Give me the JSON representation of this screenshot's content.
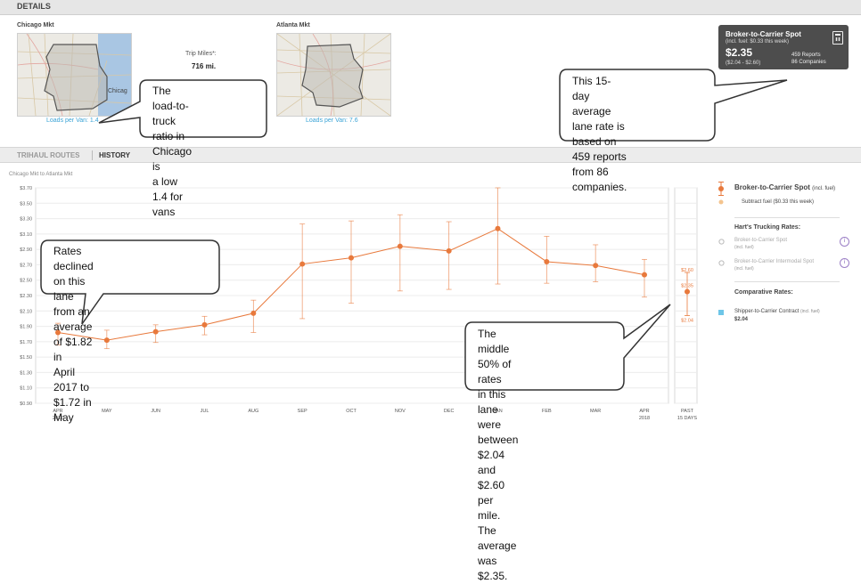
{
  "header": {
    "details_label": "DETAILS"
  },
  "origin": {
    "label": "Chicago Mkt",
    "map_text": "Chicag",
    "loads_per_van": "Loads per Van: 1.4"
  },
  "destination": {
    "label": "Atlanta Mkt",
    "loads_per_van": "Loads per Van: 7.6"
  },
  "trip": {
    "label": "Trip Miles*:",
    "value": "716 mi."
  },
  "spot_card": {
    "title": "Broker-to-Carrier Spot",
    "fuel_note": "(incl. fuel: $0.33 this week)",
    "rate": "$2.35",
    "range": "($2.04 - $2.60)",
    "reports": "459 Reports",
    "companies": "86 Companies",
    "icon": "calculator-icon"
  },
  "tabs": [
    {
      "label": "TRIHAUL ROUTES"
    },
    {
      "label": "HISTORY"
    }
  ],
  "chart_caption": "Chicago Mkt to Atlanta Mkt",
  "chart_data": {
    "type": "line",
    "categories": [
      "APR",
      "MAY",
      "JUN",
      "JUL",
      "AUG",
      "SEP",
      "OCT",
      "NOV",
      "DEC",
      "JAN",
      "FEB",
      "MAR",
      "APR"
    ],
    "category_sublabels": [
      "2017",
      "",
      "",
      "",
      "",
      "",
      "",
      "",
      "",
      "",
      "",
      "",
      "2018"
    ],
    "series": [
      {
        "name": "Broker-to-Carrier Spot (incl. fuel)",
        "color": "#e8793c",
        "values": [
          1.82,
          1.72,
          1.83,
          1.92,
          2.07,
          2.71,
          2.79,
          2.94,
          2.88,
          3.17,
          2.74,
          2.69,
          2.57
        ],
        "low": [
          1.66,
          1.61,
          1.69,
          1.79,
          1.82,
          2.0,
          2.2,
          2.36,
          2.38,
          2.45,
          2.46,
          2.48,
          2.28
        ],
        "high": [
          1.94,
          1.85,
          1.92,
          2.03,
          2.24,
          3.23,
          3.27,
          3.35,
          3.26,
          3.7,
          3.07,
          2.96,
          2.77
        ]
      }
    ],
    "past_15_days": {
      "label": "PAST",
      "sublabel": "15 DAYS",
      "value": 2.35,
      "low": 2.04,
      "high": 2.6,
      "value_label": "$2.35",
      "low_label": "$2.04",
      "high_label": "$2.60"
    },
    "y_ticks": [
      "$0.90",
      "$1.10",
      "$1.30",
      "$1.50",
      "$1.70",
      "$1.90",
      "$2.10",
      "$2.30",
      "$2.50",
      "$2.70",
      "$2.90",
      "$3.10",
      "$3.30",
      "$3.50",
      "$3.70"
    ],
    "ylim": [
      0.9,
      3.7
    ],
    "grid": true
  },
  "legend": {
    "spot": "Broker-to-Carrier Spot",
    "spot_suffix": "(incl. fuel)",
    "subtract_fuel": "Subtract fuel ($0.33 this week)",
    "harts_heading": "Hart's Trucking Rates:",
    "harts_spot": "Broker-to-Carrier Spot",
    "harts_spot_sub": "(incl. fuel)",
    "harts_intermodal": "Broker-to-Carrier Intermodal Spot",
    "harts_intermodal_sub": "(incl. fuel)",
    "info_symbol": "i",
    "comparative_heading": "Comparative Rates:",
    "contract": "Shipper-to-Carrier Contract",
    "contract_suffix": "(incl. fuel)",
    "contract_value": "$2.04",
    "colors": {
      "spot": "#e8793c",
      "subtract": "#f4c48e",
      "contract": "#6ec6e8",
      "info": "#7e5bb5"
    }
  },
  "callouts": {
    "load_ratio": [
      "The load-to-truck",
      "ratio in Chicago is",
      "a low 1.4 for vans"
    ],
    "avg_rate": [
      "This 15-day average",
      "lane rate is based on",
      "459 reports from 86",
      "companies."
    ],
    "decline": [
      "Rates declined on this lane",
      "from an average of $1.82 in",
      "April 2017 to $1.72 in May"
    ],
    "middle": [
      "The middle 50% of rates",
      "in this lane were between",
      "$2.04 and $2.60 per mile.",
      "The average was $2.35."
    ]
  }
}
